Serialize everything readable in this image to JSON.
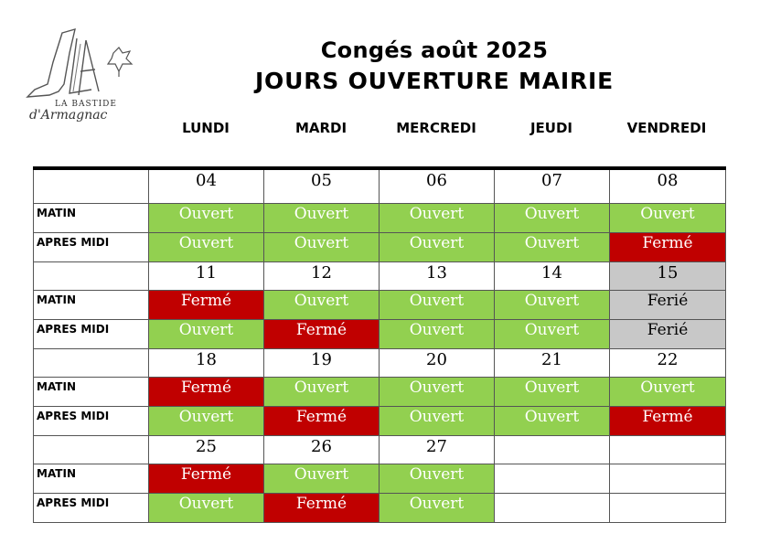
{
  "logo": {
    "monogram": "LA",
    "line1": "LA BASTIDE",
    "line2": "d'Armagnac"
  },
  "title": {
    "line1": "Congés août 2025",
    "line2": "JOURS OUVERTURE MAIRIE"
  },
  "days": [
    "LUNDI",
    "MARDI",
    "MERCREDI",
    "JEUDI",
    "VENDREDI"
  ],
  "colors": {
    "open": "#92d050",
    "closed": "#c00000",
    "holiday": "#c8c8c8"
  },
  "rows": [
    {
      "type": "date",
      "cells": [
        "04",
        "05",
        "06",
        "07",
        "08"
      ]
    },
    {
      "type": "status",
      "label": "MATIN",
      "cells": [
        {
          "text": "Ouvert",
          "state": "open"
        },
        {
          "text": "Ouvert",
          "state": "open"
        },
        {
          "text": "Ouvert",
          "state": "open"
        },
        {
          "text": "Ouvert",
          "state": "open"
        },
        {
          "text": "Ouvert",
          "state": "open"
        }
      ]
    },
    {
      "type": "status",
      "label": "APRES MIDI",
      "cells": [
        {
          "text": "Ouvert",
          "state": "open"
        },
        {
          "text": "Ouvert",
          "state": "open"
        },
        {
          "text": "Ouvert",
          "state": "open"
        },
        {
          "text": "Ouvert",
          "state": "open"
        },
        {
          "text": "Fermé",
          "state": "closed"
        }
      ]
    },
    {
      "type": "date",
      "cells": [
        "11",
        "12",
        "13",
        "14",
        {
          "text": "15",
          "state": "holiday"
        }
      ]
    },
    {
      "type": "status",
      "label": "MATIN",
      "cells": [
        {
          "text": "Fermé",
          "state": "closed"
        },
        {
          "text": "Ouvert",
          "state": "open"
        },
        {
          "text": "Ouvert",
          "state": "open"
        },
        {
          "text": "Ouvert",
          "state": "open"
        },
        {
          "text": "Ferié",
          "state": "holiday"
        }
      ]
    },
    {
      "type": "status",
      "label": "APRES MIDI",
      "cells": [
        {
          "text": "Ouvert",
          "state": "open"
        },
        {
          "text": "Fermé",
          "state": "closed"
        },
        {
          "text": "Ouvert",
          "state": "open"
        },
        {
          "text": "Ouvert",
          "state": "open"
        },
        {
          "text": "Ferié",
          "state": "holiday"
        }
      ]
    },
    {
      "type": "date",
      "cells": [
        "18",
        "19",
        "20",
        "21",
        "22"
      ]
    },
    {
      "type": "status",
      "label": "MATIN",
      "cells": [
        {
          "text": "Fermé",
          "state": "closed"
        },
        {
          "text": "Ouvert",
          "state": "open"
        },
        {
          "text": "Ouvert",
          "state": "open"
        },
        {
          "text": "Ouvert",
          "state": "open"
        },
        {
          "text": "Ouvert",
          "state": "open"
        }
      ]
    },
    {
      "type": "status",
      "label": "APRES MIDI",
      "cells": [
        {
          "text": "Ouvert",
          "state": "open"
        },
        {
          "text": "Fermé",
          "state": "closed"
        },
        {
          "text": "Ouvert",
          "state": "open"
        },
        {
          "text": "Ouvert",
          "state": "open"
        },
        {
          "text": "Fermé",
          "state": "closed"
        }
      ]
    },
    {
      "type": "date",
      "cells": [
        "25",
        "26",
        "27",
        "",
        ""
      ]
    },
    {
      "type": "status",
      "label": "MATIN",
      "cells": [
        {
          "text": "Fermé",
          "state": "closed"
        },
        {
          "text": "Ouvert",
          "state": "open"
        },
        {
          "text": "Ouvert",
          "state": "open"
        },
        {
          "text": "",
          "state": "none"
        },
        {
          "text": "",
          "state": "none"
        }
      ]
    },
    {
      "type": "status",
      "label": "APRES MIDI",
      "cells": [
        {
          "text": "Ouvert",
          "state": "open"
        },
        {
          "text": "Fermé",
          "state": "closed"
        },
        {
          "text": "Ouvert",
          "state": "open"
        },
        {
          "text": "",
          "state": "none"
        },
        {
          "text": "",
          "state": "none"
        }
      ]
    }
  ]
}
